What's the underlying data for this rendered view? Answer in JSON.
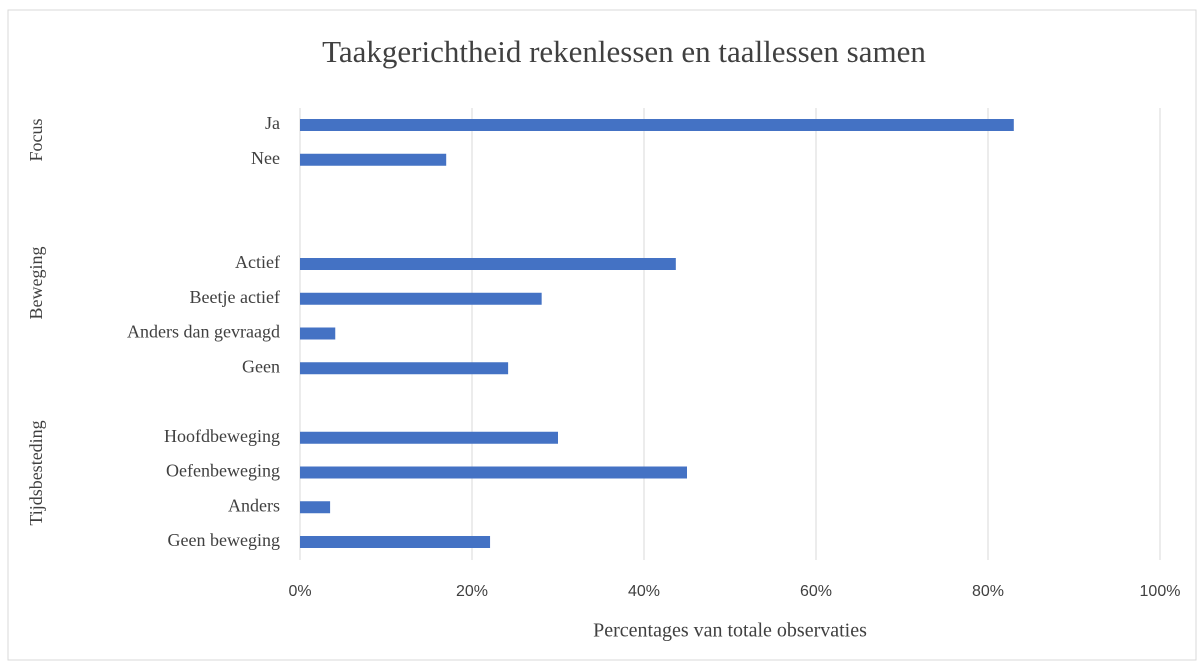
{
  "chart_data": {
    "type": "hbar",
    "title": "Taakgerichtheid rekenlessen en taallessen samen",
    "x_label": "Percentages van totale observaties",
    "groups": [
      "Focus",
      "Beweging",
      "Tijdsbesteding"
    ],
    "categories": [
      "Ja",
      "Nee",
      null,
      null,
      "Actief",
      "Beetje actief",
      "Anders dan gevraagd",
      "Geen",
      null,
      "Hoofdbeweging",
      "Oefenbeweging",
      "Anders",
      "Geen beweging"
    ],
    "values": [
      83.0,
      17.0,
      null,
      null,
      43.7,
      28.1,
      4.1,
      24.2,
      null,
      30.0,
      45.0,
      3.5,
      22.1
    ],
    "color": "#4472c4",
    "xlim": [
      0,
      100
    ],
    "xticks": [
      {
        "value": 0,
        "label": "0%"
      },
      {
        "value": 20,
        "label": "20%"
      },
      {
        "value": 40,
        "label": "40%"
      },
      {
        "value": 60,
        "label": "60%"
      },
      {
        "value": 80,
        "label": "80%"
      },
      {
        "value": 100,
        "label": "100%"
      }
    ],
    "grid": true
  }
}
